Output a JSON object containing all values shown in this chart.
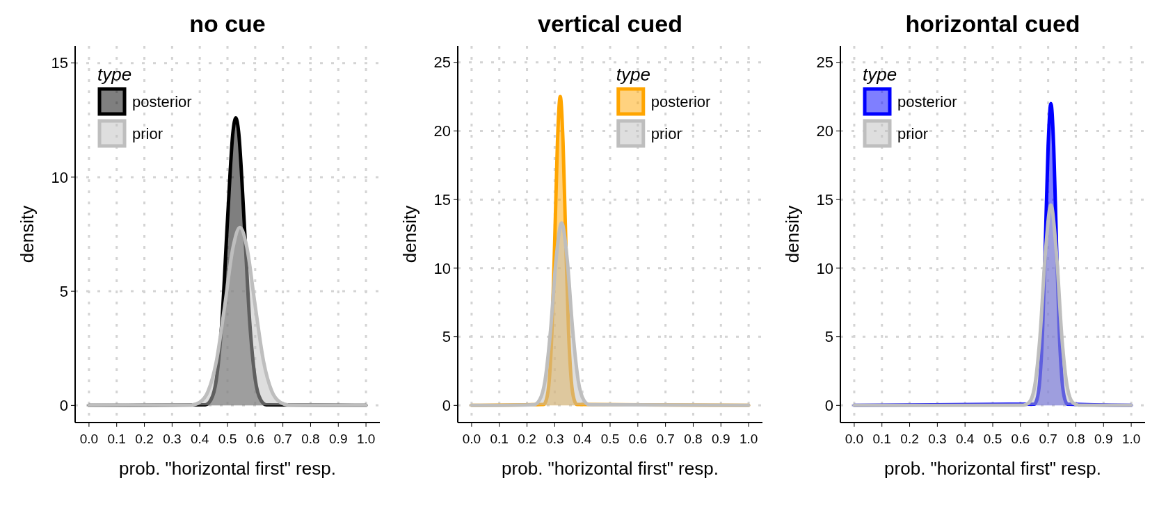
{
  "chart_data": [
    {
      "type": "area",
      "title": "no cue",
      "xlabel": "prob. \"horizontal first\" resp.",
      "ylabel": "density",
      "legend_title": "type",
      "legend": "top left",
      "grid": true,
      "xlim": [
        -0.05,
        1.05
      ],
      "xticks": [
        {
          "value": 0,
          "label": "0.0"
        },
        {
          "value": 0.1,
          "label": "0.1"
        },
        {
          "value": 0.2,
          "label": "0.2"
        },
        {
          "value": 0.3,
          "label": "0.3"
        },
        {
          "value": 0.4,
          "label": "0.4"
        },
        {
          "value": 0.5,
          "label": "0.5"
        },
        {
          "value": 0.6,
          "label": "0.6"
        },
        {
          "value": 0.7,
          "label": "0.7"
        },
        {
          "value": 0.8,
          "label": "0.8"
        },
        {
          "value": 0.9,
          "label": "0.9"
        },
        {
          "value": 1,
          "label": "1.0"
        }
      ],
      "ylim": [
        -0.75,
        15.75
      ],
      "yticks": [
        0,
        5,
        10,
        15
      ],
      "series": [
        {
          "name": "posterior",
          "color": "#000000",
          "x": [
            0,
            0.42,
            0.44,
            0.46,
            0.48,
            0.5,
            0.52,
            0.53,
            0.54,
            0.56,
            0.58,
            0.6,
            0.62,
            0.64,
            1
          ],
          "values": [
            0,
            0.03,
            0.24,
            1.15,
            3.7,
            8.1,
            12,
            12.6,
            12,
            8.1,
            3.7,
            1.15,
            0.24,
            0.03,
            0
          ]
        },
        {
          "name": "prior",
          "color": "#bebebe",
          "x": [
            0,
            0.37,
            0.4,
            0.43,
            0.46,
            0.49,
            0.52,
            0.545,
            0.57,
            0.6,
            0.63,
            0.66,
            0.69,
            0.72,
            1
          ],
          "values": [
            0,
            0.02,
            0.14,
            0.62,
            1.94,
            4.36,
            6.92,
            7.8,
            6.92,
            4.36,
            1.94,
            0.62,
            0.14,
            0.02,
            0
          ]
        }
      ]
    },
    {
      "type": "area",
      "title": "vertical cued",
      "xlabel": "prob. \"horizontal first\" resp.",
      "ylabel": "density",
      "legend_title": "type",
      "legend": "top right",
      "grid": true,
      "xlim": [
        -0.05,
        1.05
      ],
      "xticks": [
        {
          "value": 0,
          "label": "0.0"
        },
        {
          "value": 0.1,
          "label": "0.1"
        },
        {
          "value": 0.2,
          "label": "0.2"
        },
        {
          "value": 0.3,
          "label": "0.3"
        },
        {
          "value": 0.4,
          "label": "0.4"
        },
        {
          "value": 0.5,
          "label": "0.5"
        },
        {
          "value": 0.6,
          "label": "0.6"
        },
        {
          "value": 0.7,
          "label": "0.7"
        },
        {
          "value": 0.8,
          "label": "0.8"
        },
        {
          "value": 0.9,
          "label": "0.9"
        },
        {
          "value": 1,
          "label": "1.0"
        }
      ],
      "ylim": [
        -1.25,
        26.2
      ],
      "yticks": [
        0,
        5,
        10,
        15,
        20,
        25
      ],
      "series": [
        {
          "name": "posterior",
          "color": "#ffa500",
          "x": [
            0,
            0.26,
            0.27,
            0.28,
            0.29,
            0.3,
            0.31,
            0.32,
            0.33,
            0.34,
            0.35,
            0.36,
            0.37,
            0.38,
            1
          ],
          "values": [
            0,
            0.07,
            0.42,
            1.76,
            5.4,
            11.9,
            19.2,
            22.5,
            19.2,
            11.9,
            5.4,
            1.76,
            0.42,
            0.07,
            0
          ]
        },
        {
          "name": "prior",
          "color": "#bebebe",
          "x": [
            0,
            0.225,
            0.245,
            0.265,
            0.285,
            0.305,
            0.325,
            0.345,
            0.365,
            0.385,
            0.405,
            0.425,
            1
          ],
          "values": [
            0,
            0.05,
            0.38,
            1.8,
            5.47,
            10.65,
            13.3,
            10.65,
            5.47,
            1.8,
            0.38,
            0.05,
            0
          ]
        }
      ]
    },
    {
      "type": "area",
      "title": "horizontal cued",
      "xlabel": "prob. \"horizontal first\" resp.",
      "ylabel": "density",
      "legend_title": "type",
      "legend": "top left",
      "grid": true,
      "xlim": [
        -0.05,
        1.05
      ],
      "xticks": [
        {
          "value": 0,
          "label": "0.0"
        },
        {
          "value": 0.1,
          "label": "0.1"
        },
        {
          "value": 0.2,
          "label": "0.2"
        },
        {
          "value": 0.3,
          "label": "0.3"
        },
        {
          "value": 0.4,
          "label": "0.4"
        },
        {
          "value": 0.5,
          "label": "0.5"
        },
        {
          "value": 0.6,
          "label": "0.6"
        },
        {
          "value": 0.7,
          "label": "0.7"
        },
        {
          "value": 0.8,
          "label": "0.8"
        },
        {
          "value": 0.9,
          "label": "0.9"
        },
        {
          "value": 1,
          "label": "1.0"
        }
      ],
      "ylim": [
        -1.25,
        26.2
      ],
      "yticks": [
        0,
        5,
        10,
        15,
        20,
        25
      ],
      "series": [
        {
          "name": "posterior",
          "color": "#0000ff",
          "x": [
            0,
            0.65,
            0.66,
            0.67,
            0.68,
            0.69,
            0.7,
            0.71,
            0.72,
            0.73,
            0.74,
            0.75,
            0.76,
            0.77,
            1
          ],
          "values": [
            0,
            0.09,
            0.46,
            1.86,
            5.47,
            11.9,
            18.9,
            22,
            18.9,
            11.9,
            5.47,
            1.86,
            0.46,
            0.09,
            0
          ]
        },
        {
          "name": "prior",
          "color": "#bebebe",
          "x": [
            0,
            0.61,
            0.63,
            0.65,
            0.67,
            0.69,
            0.71,
            0.73,
            0.75,
            0.77,
            0.79,
            0.81,
            1
          ],
          "values": [
            0,
            0.02,
            0.18,
            1.24,
            4.86,
            11.1,
            14.6,
            11.1,
            4.86,
            1.24,
            0.18,
            0.02,
            0
          ]
        }
      ]
    }
  ]
}
